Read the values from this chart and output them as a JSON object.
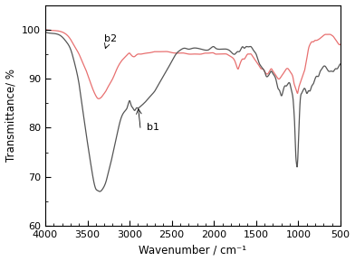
{
  "title": "",
  "xlabel": "Wavenumber / cm⁻¹",
  "ylabel": "Transmittance/ %",
  "xlim": [
    4000,
    500
  ],
  "ylim": [
    60,
    105
  ],
  "yticks": [
    60,
    70,
    80,
    90,
    100
  ],
  "xticks": [
    4000,
    3500,
    3000,
    2500,
    2000,
    1500,
    1000,
    500
  ],
  "b1_color": "#555555",
  "b2_color": "#e87070",
  "label_b1": "b1",
  "label_b2": "b2",
  "b1_keypoints": [
    [
      4000,
      99.5
    ],
    [
      3900,
      99.2
    ],
    [
      3800,
      98.5
    ],
    [
      3750,
      97.5
    ],
    [
      3700,
      96.0
    ],
    [
      3650,
      93.0
    ],
    [
      3600,
      89.0
    ],
    [
      3550,
      83.0
    ],
    [
      3500,
      77.0
    ],
    [
      3450,
      71.5
    ],
    [
      3400,
      67.5
    ],
    [
      3380,
      67.2
    ],
    [
      3350,
      67.0
    ],
    [
      3320,
      67.5
    ],
    [
      3280,
      69.0
    ],
    [
      3250,
      71.0
    ],
    [
      3200,
      74.5
    ],
    [
      3150,
      78.5
    ],
    [
      3100,
      82.0
    ],
    [
      3050,
      83.5
    ],
    [
      3020,
      84.5
    ],
    [
      3000,
      85.5
    ],
    [
      2980,
      84.5
    ],
    [
      2960,
      84.0
    ],
    [
      2940,
      83.5
    ],
    [
      2920,
      84.0
    ],
    [
      2900,
      84.0
    ],
    [
      2880,
      84.2
    ],
    [
      2860,
      84.5
    ],
    [
      2800,
      85.5
    ],
    [
      2750,
      86.5
    ],
    [
      2700,
      87.5
    ],
    [
      2650,
      89.0
    ],
    [
      2600,
      90.5
    ],
    [
      2550,
      92.0
    ],
    [
      2500,
      93.5
    ],
    [
      2450,
      95.0
    ],
    [
      2400,
      95.8
    ],
    [
      2350,
      96.2
    ],
    [
      2300,
      96.0
    ],
    [
      2250,
      96.2
    ],
    [
      2200,
      96.2
    ],
    [
      2150,
      96.0
    ],
    [
      2100,
      95.8
    ],
    [
      2050,
      96.0
    ],
    [
      2000,
      96.5
    ],
    [
      1980,
      96.2
    ],
    [
      1950,
      96.0
    ],
    [
      1900,
      96.0
    ],
    [
      1850,
      96.0
    ],
    [
      1800,
      95.5
    ],
    [
      1750,
      95.0
    ],
    [
      1720,
      95.5
    ],
    [
      1700,
      95.5
    ],
    [
      1680,
      96.0
    ],
    [
      1660,
      96.5
    ],
    [
      1640,
      96.2
    ],
    [
      1620,
      96.5
    ],
    [
      1600,
      96.5
    ],
    [
      1580,
      96.5
    ],
    [
      1560,
      96.5
    ],
    [
      1540,
      96.0
    ],
    [
      1520,
      95.5
    ],
    [
      1500,
      95.0
    ],
    [
      1480,
      94.0
    ],
    [
      1460,
      93.0
    ],
    [
      1440,
      92.5
    ],
    [
      1420,
      92.0
    ],
    [
      1400,
      91.5
    ],
    [
      1380,
      90.5
    ],
    [
      1360,
      90.5
    ],
    [
      1340,
      91.0
    ],
    [
      1320,
      91.5
    ],
    [
      1300,
      91.0
    ],
    [
      1280,
      90.5
    ],
    [
      1260,
      89.5
    ],
    [
      1240,
      88.0
    ],
    [
      1220,
      87.5
    ],
    [
      1200,
      86.5
    ],
    [
      1180,
      87.5
    ],
    [
      1160,
      88.5
    ],
    [
      1140,
      88.5
    ],
    [
      1120,
      89.0
    ],
    [
      1100,
      89.0
    ],
    [
      1080,
      87.5
    ],
    [
      1060,
      85.5
    ],
    [
      1050,
      83.0
    ],
    [
      1040,
      79.5
    ],
    [
      1030,
      74.5
    ],
    [
      1020,
      72.5
    ],
    [
      1015,
      72.0
    ],
    [
      1010,
      72.5
    ],
    [
      1005,
      74.0
    ],
    [
      995,
      78.0
    ],
    [
      985,
      83.0
    ],
    [
      975,
      86.0
    ],
    [
      960,
      87.0
    ],
    [
      945,
      87.5
    ],
    [
      930,
      88.0
    ],
    [
      910,
      87.5
    ],
    [
      900,
      87.0
    ],
    [
      880,
      87.5
    ],
    [
      860,
      87.5
    ],
    [
      840,
      88.5
    ],
    [
      820,
      89.0
    ],
    [
      800,
      90.0
    ],
    [
      780,
      90.5
    ],
    [
      760,
      90.5
    ],
    [
      740,
      91.5
    ],
    [
      720,
      92.0
    ],
    [
      700,
      92.5
    ],
    [
      680,
      92.5
    ],
    [
      660,
      92.0
    ],
    [
      640,
      91.5
    ],
    [
      620,
      91.5
    ],
    [
      600,
      91.5
    ],
    [
      580,
      91.5
    ],
    [
      560,
      92.0
    ],
    [
      540,
      92.0
    ],
    [
      520,
      92.5
    ],
    [
      500,
      93.0
    ]
  ],
  "b2_keypoints": [
    [
      4000,
      100.0
    ],
    [
      3900,
      99.8
    ],
    [
      3800,
      99.5
    ],
    [
      3750,
      99.0
    ],
    [
      3700,
      98.0
    ],
    [
      3650,
      96.5
    ],
    [
      3600,
      95.0
    ],
    [
      3550,
      93.0
    ],
    [
      3500,
      91.0
    ],
    [
      3450,
      88.5
    ],
    [
      3400,
      86.5
    ],
    [
      3380,
      86.0
    ],
    [
      3350,
      86.0
    ],
    [
      3320,
      86.5
    ],
    [
      3300,
      87.0
    ],
    [
      3280,
      87.5
    ],
    [
      3250,
      88.5
    ],
    [
      3200,
      90.0
    ],
    [
      3150,
      92.0
    ],
    [
      3100,
      93.5
    ],
    [
      3050,
      94.5
    ],
    [
      3020,
      95.0
    ],
    [
      3000,
      95.2
    ],
    [
      2980,
      94.8
    ],
    [
      2960,
      94.5
    ],
    [
      2940,
      94.5
    ],
    [
      2920,
      94.8
    ],
    [
      2900,
      95.0
    ],
    [
      2880,
      95.0
    ],
    [
      2860,
      95.0
    ],
    [
      2800,
      95.2
    ],
    [
      2750,
      95.3
    ],
    [
      2700,
      95.5
    ],
    [
      2650,
      95.5
    ],
    [
      2600,
      95.5
    ],
    [
      2550,
      95.5
    ],
    [
      2500,
      95.3
    ],
    [
      2450,
      95.2
    ],
    [
      2400,
      95.2
    ],
    [
      2350,
      95.2
    ],
    [
      2300,
      95.0
    ],
    [
      2250,
      95.0
    ],
    [
      2200,
      95.0
    ],
    [
      2150,
      95.0
    ],
    [
      2100,
      95.2
    ],
    [
      2050,
      95.2
    ],
    [
      2000,
      95.2
    ],
    [
      1980,
      95.0
    ],
    [
      1950,
      95.0
    ],
    [
      1900,
      95.0
    ],
    [
      1850,
      95.0
    ],
    [
      1800,
      94.5
    ],
    [
      1750,
      93.5
    ],
    [
      1730,
      92.5
    ],
    [
      1710,
      92.0
    ],
    [
      1700,
      92.5
    ],
    [
      1680,
      93.5
    ],
    [
      1660,
      94.0
    ],
    [
      1640,
      94.0
    ],
    [
      1620,
      94.5
    ],
    [
      1600,
      95.0
    ],
    [
      1580,
      95.0
    ],
    [
      1560,
      95.0
    ],
    [
      1540,
      94.5
    ],
    [
      1520,
      94.0
    ],
    [
      1500,
      93.5
    ],
    [
      1480,
      93.0
    ],
    [
      1460,
      92.5
    ],
    [
      1440,
      92.0
    ],
    [
      1420,
      92.0
    ],
    [
      1400,
      91.5
    ],
    [
      1380,
      91.0
    ],
    [
      1360,
      91.0
    ],
    [
      1340,
      91.5
    ],
    [
      1320,
      92.0
    ],
    [
      1300,
      91.5
    ],
    [
      1280,
      91.0
    ],
    [
      1260,
      90.5
    ],
    [
      1240,
      90.0
    ],
    [
      1220,
      90.0
    ],
    [
      1200,
      90.5
    ],
    [
      1180,
      91.0
    ],
    [
      1160,
      91.5
    ],
    [
      1140,
      92.0
    ],
    [
      1120,
      92.0
    ],
    [
      1100,
      91.5
    ],
    [
      1080,
      91.0
    ],
    [
      1060,
      90.0
    ],
    [
      1050,
      89.0
    ],
    [
      1040,
      88.5
    ],
    [
      1030,
      88.0
    ],
    [
      1020,
      87.5
    ],
    [
      1010,
      87.0
    ],
    [
      1000,
      87.5
    ],
    [
      990,
      88.5
    ],
    [
      980,
      89.0
    ],
    [
      970,
      89.5
    ],
    [
      960,
      90.0
    ],
    [
      950,
      90.5
    ],
    [
      940,
      91.0
    ],
    [
      930,
      91.5
    ],
    [
      920,
      92.0
    ],
    [
      910,
      93.0
    ],
    [
      900,
      94.0
    ],
    [
      890,
      95.0
    ],
    [
      880,
      96.0
    ],
    [
      860,
      97.0
    ],
    [
      840,
      97.5
    ],
    [
      820,
      97.5
    ],
    [
      800,
      97.8
    ],
    [
      780,
      97.8
    ],
    [
      760,
      98.0
    ],
    [
      740,
      98.2
    ],
    [
      720,
      98.5
    ],
    [
      700,
      98.8
    ],
    [
      680,
      99.0
    ],
    [
      660,
      99.0
    ],
    [
      640,
      99.0
    ],
    [
      620,
      99.0
    ],
    [
      600,
      98.8
    ],
    [
      580,
      98.5
    ],
    [
      560,
      98.0
    ],
    [
      540,
      97.5
    ],
    [
      520,
      97.0
    ],
    [
      500,
      97.0
    ]
  ]
}
